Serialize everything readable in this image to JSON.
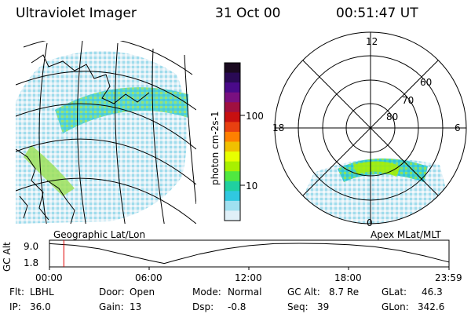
{
  "header": {
    "title": "Ultraviolet Imager",
    "date": "31 Oct 00",
    "time": "00:51:47 UT"
  },
  "colorbar": {
    "label": "photon cm-2s-1",
    "ticks": [
      "100",
      "10"
    ],
    "colors": [
      "#1a0a20",
      "#2a0a55",
      "#4a0a8a",
      "#7a1080",
      "#a01040",
      "#c81010",
      "#e84010",
      "#ff8000",
      "#f0c000",
      "#e8ff00",
      "#a8f000",
      "#50e840",
      "#20d0a0",
      "#30c8e0",
      "#a0e0f0",
      "#e0f0f8"
    ]
  },
  "polar": {
    "labels": {
      "top": "12",
      "left": "18",
      "right": "6",
      "bottom": "0"
    },
    "lat_labels": [
      "60",
      "70",
      "80"
    ]
  },
  "panel_labels": {
    "left": "Geographic Lat/Lon",
    "right": "Apex MLat/MLT"
  },
  "alt_plot": {
    "ylabel": "GC Alt",
    "yticks": [
      "9.0",
      "1.8"
    ],
    "xticks": [
      "00:00",
      "06:00",
      "12:00",
      "18:00",
      "23:59"
    ],
    "marker_hour": 0.863,
    "curve": [
      [
        0,
        8.9
      ],
      [
        1.5,
        8.3
      ],
      [
        3,
        7.1
      ],
      [
        4.5,
        5.0
      ],
      [
        6,
        3.0
      ],
      [
        6.9,
        1.9
      ],
      [
        7.5,
        2.9
      ],
      [
        9,
        5.2
      ],
      [
        10.5,
        7.0
      ],
      [
        12,
        8.2
      ],
      [
        13.5,
        8.9
      ],
      [
        15,
        9.0
      ],
      [
        16.5,
        8.9
      ],
      [
        18,
        8.5
      ],
      [
        19.5,
        7.8
      ],
      [
        21,
        6.5
      ],
      [
        22.5,
        4.6
      ],
      [
        23.98,
        2.4
      ]
    ]
  },
  "info": {
    "row1": [
      {
        "label": "Flt:",
        "value": "LBHL"
      },
      {
        "label": "Door:",
        "value": "Open"
      },
      {
        "label": "Mode:",
        "value": "Normal"
      },
      {
        "label": "GC Alt:",
        "value": "8.7 Re"
      },
      {
        "label": "GLat:",
        "value": "46.3"
      }
    ],
    "row2": [
      {
        "label": "IP:",
        "value": "36.0"
      },
      {
        "label": "Gain:",
        "value": "13"
      },
      {
        "label": "Dsp:",
        "value": "-0.8"
      },
      {
        "label": "Seq:",
        "value": "39"
      },
      {
        "label": "GLon:",
        "value": "342.6"
      }
    ]
  }
}
